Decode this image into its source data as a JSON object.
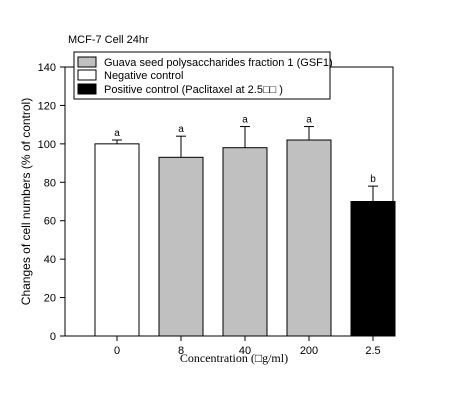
{
  "chart_data": {
    "type": "bar",
    "title": "MCF-7 Cell 24hr",
    "xlabel": "Concentration (□g/ml)",
    "ylabel": "Changes of cell numbers (% of control)",
    "ylim": [
      0,
      140
    ],
    "yticks": [
      0,
      20,
      40,
      60,
      80,
      100,
      120,
      140
    ],
    "categories": [
      "0",
      "8",
      "40",
      "200",
      "2.5"
    ],
    "values": [
      100,
      93,
      98,
      102,
      70
    ],
    "errors": [
      2,
      11,
      11,
      7,
      8
    ],
    "significance": [
      "a",
      "a",
      "a",
      "a",
      "b"
    ],
    "bar_groups": [
      "negative",
      "gsf1",
      "gsf1",
      "gsf1",
      "positive"
    ],
    "legend": [
      {
        "key": "gsf1",
        "label": "Guava seed polysaccharides fraction 1 (GSF1)",
        "color": "#c0c0c0"
      },
      {
        "key": "negative",
        "label": "Negative control",
        "color": "#ffffff"
      },
      {
        "key": "positive",
        "label": "Positive control (Paclitaxel at 2.5□□ )",
        "color": "#000000"
      }
    ],
    "legend_position": "top"
  }
}
